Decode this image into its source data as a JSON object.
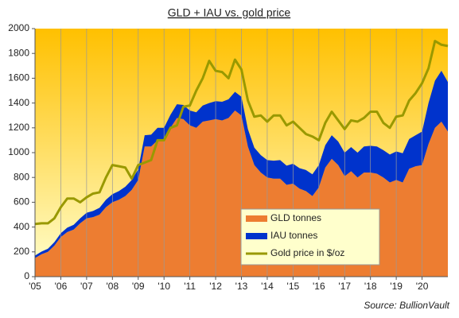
{
  "chart_data": {
    "type": "stacked-area-line",
    "title": "GLD + IAU vs. gold price",
    "source": "Source:  BullionVault",
    "x": [
      2005,
      2005.25,
      2005.5,
      2005.75,
      2006,
      2006.25,
      2006.5,
      2006.75,
      2007,
      2007.25,
      2007.5,
      2007.75,
      2008,
      2008.25,
      2008.5,
      2008.75,
      2009,
      2009.25,
      2009.5,
      2009.75,
      2010,
      2010.25,
      2010.5,
      2010.75,
      2011,
      2011.25,
      2011.5,
      2011.75,
      2012,
      2012.25,
      2012.5,
      2012.75,
      2013,
      2013.25,
      2013.5,
      2013.75,
      2014,
      2014.25,
      2014.5,
      2014.75,
      2015,
      2015.25,
      2015.5,
      2015.75,
      2016,
      2016.25,
      2016.5,
      2016.75,
      2017,
      2017.25,
      2017.5,
      2017.75,
      2018,
      2018.25,
      2018.5,
      2018.75,
      2019,
      2019.25,
      2019.5,
      2019.75,
      2020,
      2020.25,
      2020.5,
      2020.75,
      2021
    ],
    "series": [
      {
        "name": "GLD tonnes",
        "type": "area",
        "stack": true,
        "color": "#ed7d31",
        "values": [
          150,
          180,
          200,
          250,
          320,
          360,
          380,
          430,
          470,
          480,
          500,
          560,
          600,
          620,
          650,
          700,
          780,
          1050,
          1050,
          1100,
          1100,
          1200,
          1280,
          1270,
          1220,
          1200,
          1250,
          1260,
          1270,
          1260,
          1280,
          1340,
          1300,
          1050,
          900,
          840,
          800,
          790,
          790,
          740,
          750,
          710,
          690,
          650,
          720,
          880,
          950,
          900,
          810,
          850,
          800,
          840,
          840,
          830,
          800,
          760,
          780,
          760,
          870,
          890,
          900,
          1070,
          1200,
          1250,
          1170
        ]
      },
      {
        "name": "IAU tonnes",
        "type": "area",
        "stack": true,
        "color": "#0033cc",
        "values": [
          20,
          22,
          25,
          28,
          30,
          35,
          38,
          40,
          45,
          50,
          55,
          60,
          65,
          70,
          75,
          80,
          85,
          90,
          95,
          100,
          100,
          105,
          110,
          115,
          120,
          125,
          130,
          140,
          145,
          150,
          150,
          150,
          150,
          140,
          140,
          140,
          140,
          145,
          150,
          155,
          160,
          165,
          170,
          175,
          180,
          180,
          190,
          190,
          190,
          195,
          200,
          210,
          215,
          220,
          220,
          225,
          230,
          235,
          240,
          250,
          270,
          330,
          380,
          410,
          400
        ]
      },
      {
        "name": "Gold price in $/oz",
        "type": "line",
        "color": "#999900",
        "values": [
          425,
          430,
          430,
          470,
          560,
          630,
          630,
          600,
          640,
          670,
          680,
          800,
          900,
          890,
          880,
          790,
          900,
          920,
          940,
          1100,
          1100,
          1200,
          1220,
          1370,
          1380,
          1500,
          1600,
          1740,
          1660,
          1650,
          1600,
          1750,
          1670,
          1420,
          1290,
          1300,
          1250,
          1300,
          1300,
          1220,
          1250,
          1200,
          1150,
          1130,
          1100,
          1240,
          1330,
          1260,
          1190,
          1260,
          1250,
          1280,
          1330,
          1330,
          1240,
          1200,
          1290,
          1300,
          1420,
          1480,
          1560,
          1680,
          1900,
          1870,
          1860
        ]
      }
    ],
    "xlim": [
      2005,
      2021
    ],
    "xticks": [
      {
        "value": 2005,
        "label": "'05"
      },
      {
        "value": 2006,
        "label": "'06"
      },
      {
        "value": 2007,
        "label": "'07"
      },
      {
        "value": 2008,
        "label": "'08"
      },
      {
        "value": 2009,
        "label": "'09"
      },
      {
        "value": 2010,
        "label": "'10"
      },
      {
        "value": 2011,
        "label": "'11"
      },
      {
        "value": 2012,
        "label": "'12"
      },
      {
        "value": 2013,
        "label": "'13"
      },
      {
        "value": 2014,
        "label": "'14"
      },
      {
        "value": 2015,
        "label": "'15"
      },
      {
        "value": 2016,
        "label": "'16"
      },
      {
        "value": 2017,
        "label": "'17"
      },
      {
        "value": 2018,
        "label": "'18"
      },
      {
        "value": 2019,
        "label": "'19"
      },
      {
        "value": 2020,
        "label": "'20"
      }
    ],
    "ylim": [
      0,
      2000
    ],
    "yticks": [
      0,
      200,
      400,
      600,
      800,
      1000,
      1200,
      1400,
      1600,
      1800,
      2000
    ],
    "xgrid": true
  }
}
